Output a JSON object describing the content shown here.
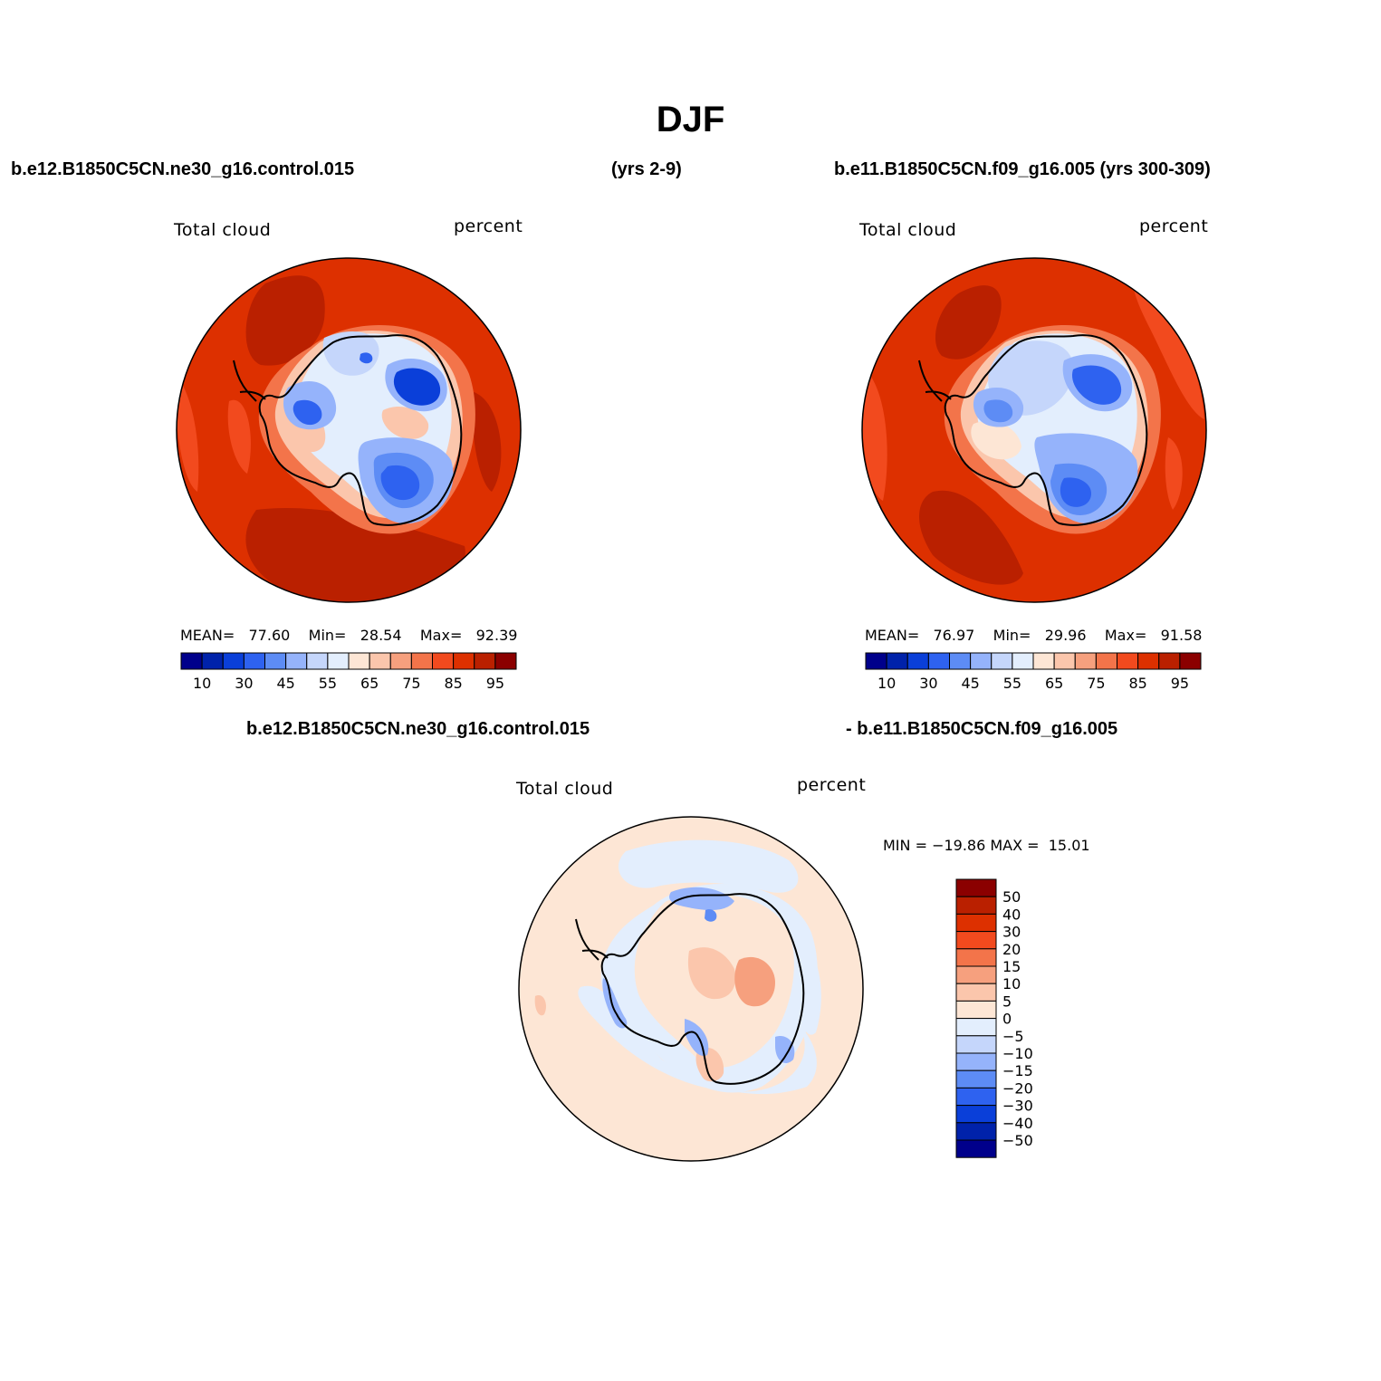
{
  "title": "DJF",
  "header": {
    "case1_name": "b.e12.B1850C5CN.ne30_g16.control.015",
    "case1_years": "(yrs 2-9)",
    "case2_name_years": "b.e11.B1850C5CN.f09_g16.005 (yrs 300-309)",
    "diff_left": "b.e12.B1850C5CN.ne30_g16.control.015",
    "diff_right": "- b.e11.B1850C5CN.f09_g16.005"
  },
  "panels": [
    {
      "variable": "Total cloud",
      "units": "percent",
      "stats": {
        "mean_label": "MEAN=",
        "mean": "77.60",
        "min_label": "Min=",
        "min": "28.54",
        "max_label": "Max=",
        "max": "92.39"
      }
    },
    {
      "variable": "Total cloud",
      "units": "percent",
      "stats": {
        "mean_label": "MEAN=",
        "mean": "76.97",
        "min_label": "Min=",
        "min": "29.96",
        "max_label": "Max=",
        "max": "91.58"
      }
    },
    {
      "variable": "Total cloud",
      "units": "percent",
      "stats_text": "MIN = −19.86 MAX =  15.01"
    }
  ],
  "colorbar_abs": {
    "colors": [
      "#00008b",
      "#0022aa",
      "#0a3fd9",
      "#2e62f0",
      "#5d8cf5",
      "#95b3fb",
      "#c5d6fb",
      "#e3eefd",
      "#fde6d5",
      "#fbc6ac",
      "#f6a07e",
      "#f3744a",
      "#f24a1e",
      "#dd3000",
      "#ba2000",
      "#8b0000"
    ],
    "tick_labels": [
      "10",
      "30",
      "45",
      "55",
      "65",
      "75",
      "85",
      "95"
    ]
  },
  "colorbar_diff": {
    "colors": [
      "#8b0000",
      "#ba2000",
      "#dd3000",
      "#f24a1e",
      "#f3744a",
      "#f6a07e",
      "#fbc6ac",
      "#fde6d5",
      "#e3eefd",
      "#c5d6fb",
      "#95b3fb",
      "#5d8cf5",
      "#2e62f0",
      "#0a3fd9",
      "#0022aa",
      "#00008b"
    ],
    "tick_labels": [
      "50",
      "40",
      "30",
      "20",
      "15",
      "10",
      "5",
      "0",
      "−5",
      "−10",
      "−15",
      "−20",
      "−30",
      "−40",
      "−50"
    ]
  }
}
